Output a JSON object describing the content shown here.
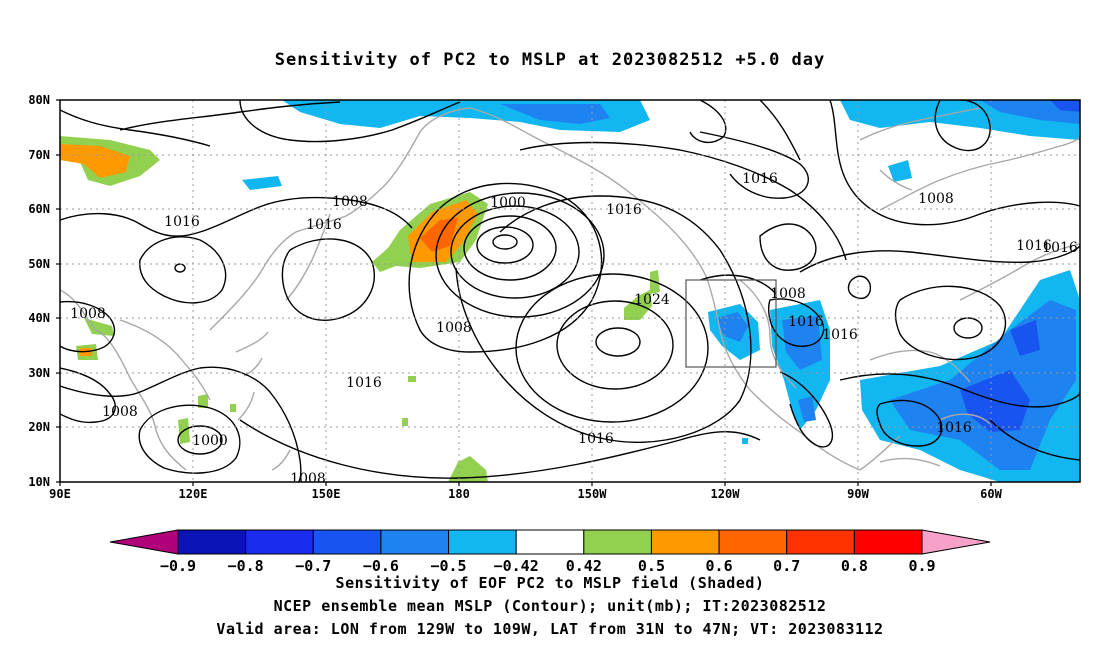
{
  "title": "Sensitivity of PC2 to MSLP at 2023082512 +5.0 day",
  "lat_labels": [
    "80N",
    "70N",
    "60N",
    "50N",
    "40N",
    "30N",
    "20N",
    "10N"
  ],
  "lon_labels": [
    "90E",
    "120E",
    "150E",
    "180",
    "150W",
    "120W",
    "90W",
    "60W"
  ],
  "contour_labels": [
    "1016",
    "1008",
    "1016",
    "1000",
    "1016",
    "1016",
    "1008",
    "1016",
    "1008",
    "1024",
    "1008",
    "1016",
    "1016",
    "1008",
    "1016",
    "1008",
    "1000",
    "1016",
    "1016",
    "1008",
    "1016"
  ],
  "colorbar": {
    "labels": [
      "-0.9",
      "-0.8",
      "-0.7",
      "-0.6",
      "-0.5",
      "-0.42",
      "0.42",
      "0.5",
      "0.6",
      "0.7",
      "0.8",
      "0.9"
    ],
    "colors": [
      "#b0007a",
      "#0a14b4",
      "#1a2cee",
      "#1855f0",
      "#1e82f0",
      "#12b6f0",
      "#ffffff",
      "#92d050",
      "#ff9900",
      "#ff6600",
      "#ff3300",
      "#ff0000",
      "#f7a0c8"
    ]
  },
  "captions": [
    "Sensitivity of EOF PC2 to MSLP field (Shaded)",
    "NCEP ensemble mean MSLP (Contour); unit(mb); IT:2023082512",
    "Valid area: LON from 129W to 109W, LAT from 31N to 47N; VT: 2023083112"
  ],
  "valid_area_box": {
    "lon": [
      "129W",
      "109W"
    ],
    "lat": [
      "31N",
      "47N"
    ]
  }
}
